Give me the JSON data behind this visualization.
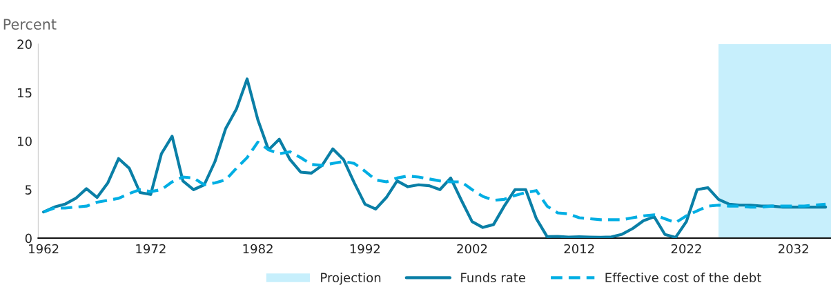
{
  "chart_data": {
    "type": "line",
    "ylabel": "Percent",
    "x": [
      1962,
      1963,
      1964,
      1965,
      1966,
      1967,
      1968,
      1969,
      1970,
      1971,
      1972,
      1973,
      1974,
      1975,
      1976,
      1977,
      1978,
      1979,
      1980,
      1981,
      1982,
      1983,
      1984,
      1985,
      1986,
      1987,
      1988,
      1989,
      1990,
      1991,
      1992,
      1993,
      1994,
      1995,
      1996,
      1997,
      1998,
      1999,
      2000,
      2001,
      2002,
      2003,
      2004,
      2005,
      2006,
      2007,
      2008,
      2009,
      2010,
      2011,
      2012,
      2013,
      2014,
      2015,
      2016,
      2017,
      2018,
      2019,
      2020,
      2021,
      2022,
      2023,
      2024,
      2025,
      2026,
      2027,
      2028,
      2029,
      2030,
      2031,
      2032,
      2033,
      2034,
      2035
    ],
    "series": [
      {
        "name": "Funds rate",
        "color": "#0a7fa6",
        "line_style": "solid",
        "values": [
          2.7,
          3.2,
          3.5,
          4.1,
          5.1,
          4.2,
          5.7,
          8.2,
          7.2,
          4.7,
          4.5,
          8.7,
          10.5,
          5.9,
          5.0,
          5.5,
          7.9,
          11.3,
          13.3,
          16.4,
          12.2,
          9.1,
          10.2,
          8.1,
          6.8,
          6.7,
          7.5,
          9.2,
          8.1,
          5.7,
          3.5,
          3.0,
          4.2,
          5.9,
          5.3,
          5.5,
          5.4,
          5.0,
          6.2,
          3.9,
          1.7,
          1.1,
          1.4,
          3.3,
          5.0,
          5.0,
          2.0,
          0.16,
          0.18,
          0.1,
          0.14,
          0.11,
          0.09,
          0.13,
          0.4,
          1.0,
          1.8,
          2.2,
          0.38,
          0.08,
          1.7,
          5.0,
          5.2,
          4.0,
          3.5,
          3.4,
          3.4,
          3.3,
          3.3,
          3.2,
          3.2,
          3.2,
          3.2,
          3.2
        ]
      },
      {
        "name": "Effective cost of the debt",
        "color": "#00aee3",
        "line_style": "dashed",
        "values": [
          2.7,
          3.1,
          3.1,
          3.2,
          3.3,
          3.7,
          3.9,
          4.1,
          4.6,
          5.0,
          4.8,
          5.0,
          5.8,
          6.3,
          6.2,
          5.5,
          5.7,
          6.0,
          7.2,
          8.3,
          9.9,
          9.1,
          8.7,
          8.9,
          8.3,
          7.6,
          7.5,
          7.7,
          7.9,
          7.7,
          6.9,
          6.0,
          5.8,
          6.2,
          6.4,
          6.3,
          6.1,
          5.9,
          5.8,
          5.8,
          5.0,
          4.3,
          3.9,
          4.0,
          4.4,
          4.7,
          4.9,
          3.3,
          2.6,
          2.5,
          2.1,
          2.0,
          1.9,
          1.9,
          1.9,
          2.1,
          2.3,
          2.4,
          2.0,
          1.6,
          2.3,
          2.8,
          3.3,
          3.4,
          3.3,
          3.3,
          3.2,
          3.2,
          3.3,
          3.3,
          3.3,
          3.3,
          3.4,
          3.5
        ]
      }
    ],
    "bands": [
      {
        "axis": "x",
        "from": 2025,
        "to": 2035.5,
        "label": "Projection",
        "color": "#c7effc"
      }
    ],
    "xlim": [
      1961.5,
      2035.5
    ],
    "xticks": [
      1962,
      1972,
      1982,
      1992,
      2002,
      2012,
      2022,
      2032
    ],
    "ylim": [
      0,
      20
    ],
    "yticks": [
      0,
      5,
      10,
      15,
      20
    ],
    "grid": false,
    "legend": "bottom",
    "marker": "none"
  }
}
